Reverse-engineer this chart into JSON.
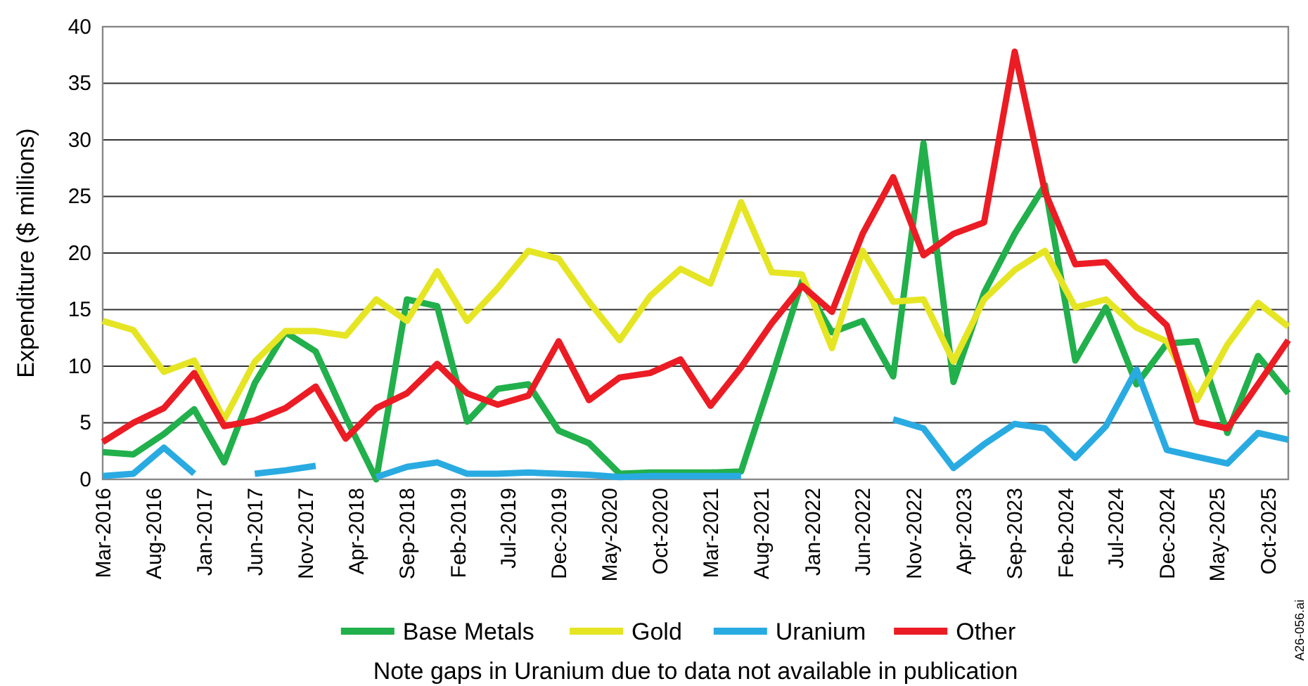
{
  "chart_data": {
    "type": "line",
    "ylabel": "Expenditure ($ millions)",
    "x": [
      "2016-03",
      "2016-06",
      "2016-09",
      "2016-12",
      "2017-03",
      "2017-06",
      "2017-09",
      "2017-12",
      "2018-03",
      "2018-06",
      "2018-09",
      "2018-12",
      "2019-03",
      "2019-06",
      "2019-09",
      "2019-12",
      "2020-03",
      "2020-06",
      "2020-09",
      "2020-12",
      "2021-03",
      "2021-06",
      "2021-09",
      "2021-12",
      "2022-03",
      "2022-06",
      "2022-09",
      "2022-12",
      "2023-03",
      "2023-06",
      "2023-09",
      "2023-12",
      "2024-03",
      "2024-06",
      "2024-09",
      "2024-12",
      "2025-03",
      "2025-06",
      "2025-09",
      "2025-12"
    ],
    "series": [
      {
        "name": "Base Metals",
        "color": "#21b04b",
        "values": [
          2.4,
          2.2,
          4.0,
          6.2,
          1.5,
          8.5,
          13.0,
          11.3,
          5.5,
          0.0,
          15.9,
          15.3,
          5.1,
          8.0,
          8.4,
          4.3,
          3.2,
          0.5,
          0.6,
          0.6,
          0.6,
          0.7,
          9.0,
          17.5,
          13.0,
          14.0,
          9.1,
          29.7,
          8.6,
          16.5,
          21.7,
          26.0,
          10.5,
          15.2,
          8.4,
          12.0,
          12.2,
          4.1,
          10.9,
          7.6
        ]
      },
      {
        "name": "Gold",
        "color": "#e5e524",
        "values": [
          14.0,
          13.2,
          9.5,
          10.5,
          5.3,
          10.4,
          13.1,
          13.1,
          12.7,
          15.9,
          14.0,
          18.4,
          14.0,
          16.9,
          20.2,
          19.5,
          15.7,
          12.3,
          16.2,
          18.6,
          17.3,
          24.5,
          18.3,
          18.1,
          11.6,
          20.2,
          15.7,
          15.9,
          10.4,
          15.9,
          18.5,
          20.2,
          15.2,
          15.9,
          13.4,
          12.2,
          7.0,
          11.9,
          15.6,
          13.5
        ]
      },
      {
        "name": "Uranium",
        "color": "#29abe2",
        "values": [
          0.3,
          0.5,
          2.8,
          0.5,
          null,
          0.5,
          0.8,
          1.2,
          null,
          0.2,
          1.1,
          1.5,
          0.5,
          0.5,
          0.6,
          0.5,
          0.4,
          0.2,
          0.3,
          0.3,
          0.3,
          0.3,
          null,
          null,
          null,
          null,
          5.3,
          4.5,
          1.0,
          3.1,
          4.9,
          4.5,
          1.9,
          4.7,
          9.7,
          2.6,
          2.0,
          1.4,
          4.1,
          3.5
        ]
      },
      {
        "name": "Other",
        "color": "#ec1c24",
        "values": [
          3.3,
          5.0,
          6.3,
          9.4,
          4.7,
          5.2,
          6.3,
          8.2,
          3.6,
          6.3,
          7.6,
          10.2,
          7.6,
          6.6,
          7.4,
          12.2,
          7.0,
          9.0,
          9.4,
          10.6,
          6.5,
          9.9,
          13.8,
          17.1,
          14.8,
          21.7,
          26.7,
          19.8,
          21.7,
          22.7,
          37.8,
          25.4,
          19.0,
          19.2,
          16.1,
          13.6,
          5.1,
          4.5,
          8.4,
          12.3
        ]
      }
    ],
    "xlim": [
      "2016-03",
      "2025-12"
    ],
    "xticks": [
      {
        "value": "2016-03",
        "label": "Mar-2016"
      },
      {
        "value": "2016-08",
        "label": "Aug-2016"
      },
      {
        "value": "2017-01",
        "label": "Jan-2017"
      },
      {
        "value": "2017-06",
        "label": "Jun-2017"
      },
      {
        "value": "2017-11",
        "label": "Nov-2017"
      },
      {
        "value": "2018-04",
        "label": "Apr-2018"
      },
      {
        "value": "2018-09",
        "label": "Sep-2018"
      },
      {
        "value": "2019-02",
        "label": "Feb-2019"
      },
      {
        "value": "2019-07",
        "label": "Jul-2019"
      },
      {
        "value": "2019-12",
        "label": "Dec-2019"
      },
      {
        "value": "2020-05",
        "label": "May-2020"
      },
      {
        "value": "2020-10",
        "label": "Oct-2020"
      },
      {
        "value": "2021-03",
        "label": "Mar-2021"
      },
      {
        "value": "2021-08",
        "label": "Aug-2021"
      },
      {
        "value": "2022-01",
        "label": "Jan-2022"
      },
      {
        "value": "2022-06",
        "label": "Jun-2022"
      },
      {
        "value": "2022-11",
        "label": "Nov-2022"
      },
      {
        "value": "2023-04",
        "label": "Apr-2023"
      },
      {
        "value": "2023-09",
        "label": "Sep-2023"
      },
      {
        "value": "2024-02",
        "label": "Feb-2024"
      },
      {
        "value": "2024-07",
        "label": "Jul-2024"
      },
      {
        "value": "2024-12",
        "label": "Dec-2024"
      },
      {
        "value": "2025-05",
        "label": "May-2025"
      },
      {
        "value": "2025-10",
        "label": "Oct-2025"
      }
    ],
    "ylim": [
      0,
      40
    ],
    "yticks": [
      0,
      5,
      10,
      15,
      20,
      25,
      30,
      35,
      40
    ],
    "grid": "y",
    "legend": "bottom",
    "marker": "none",
    "line_style": "solid",
    "annotations": [
      "Note gaps in Uranium due to data not available in publication",
      "A26-056.ai"
    ]
  }
}
